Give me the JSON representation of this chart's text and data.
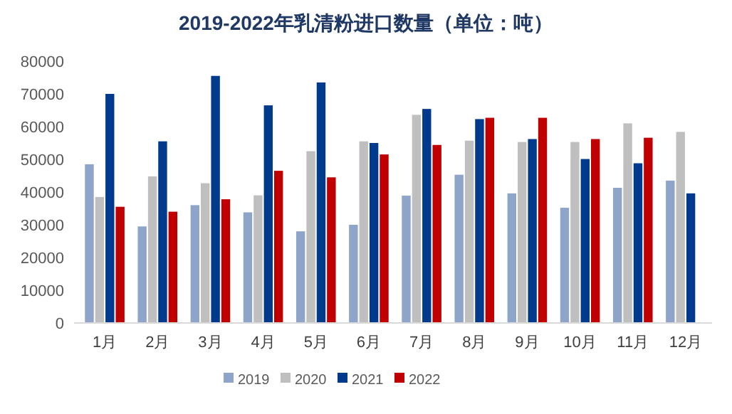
{
  "chart_data": {
    "type": "bar",
    "title": "2019-2022年乳清粉进口数量（单位：吨）",
    "categories": [
      "1月",
      "2月",
      "3月",
      "4月",
      "5月",
      "6月",
      "7月",
      "8月",
      "9月",
      "10月",
      "11月",
      "12月"
    ],
    "series": [
      {
        "name": "2019",
        "color": "#8ea4c8",
        "values": [
          48500,
          29500,
          36000,
          33800,
          28000,
          30000,
          38900,
          45300,
          39600,
          35200,
          41300,
          43500
        ]
      },
      {
        "name": "2020",
        "color": "#bfbfbf",
        "values": [
          38500,
          44800,
          42700,
          39000,
          52500,
          55500,
          63600,
          55700,
          55300,
          55300,
          61000,
          58400
        ]
      },
      {
        "name": "2021",
        "color": "#003a8c",
        "values": [
          70000,
          55500,
          75500,
          66500,
          73500,
          55000,
          65400,
          62300,
          56200,
          50100,
          48800,
          39600
        ]
      },
      {
        "name": "2022",
        "color": "#c00000",
        "values": [
          35500,
          34000,
          37800,
          46500,
          44500,
          51500,
          54400,
          62700,
          62700,
          56200,
          56600,
          null
        ]
      }
    ],
    "ylim": [
      0,
      80000
    ],
    "yticks": [
      0,
      10000,
      20000,
      30000,
      40000,
      50000,
      60000,
      70000,
      80000
    ],
    "grid": false,
    "legend": "bottom"
  }
}
